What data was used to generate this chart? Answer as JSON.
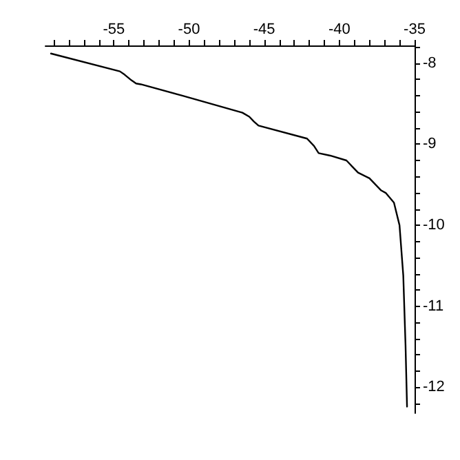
{
  "chart_data": {
    "type": "line",
    "x": [
      -59.18,
      -54.6,
      -54.29,
      -53.83,
      -53.52,
      -53.2,
      -50.45,
      -46.45,
      -45.99,
      -45.68,
      -45.38,
      -42.15,
      -41.69,
      -41.38,
      -40.61,
      -39.53,
      -38.76,
      -38.0,
      -37.22,
      -36.92,
      -36.37,
      -36.0,
      -35.75,
      -35.6,
      -35.5
    ],
    "series": [
      {
        "color": "#000000",
        "values": [
          -7.88,
          -8.1,
          -8.14,
          -8.21,
          -8.25,
          -8.26,
          -8.4,
          -8.61,
          -8.66,
          -8.72,
          -8.77,
          -8.93,
          -9.02,
          -9.11,
          -9.14,
          -9.2,
          -9.35,
          -9.42,
          -9.57,
          -9.6,
          -9.72,
          -10.0,
          -10.62,
          -11.48,
          -12.24
        ]
      }
    ],
    "xlim": [
      -59.55,
      -35
    ],
    "ylim": [
      -12.32,
      -7.78
    ],
    "xticks": [
      {
        "value": -59,
        "label": null
      },
      {
        "value": -58,
        "label": null
      },
      {
        "value": -57,
        "label": null
      },
      {
        "value": -56,
        "label": null
      },
      -55,
      {
        "value": -54,
        "label": null
      },
      {
        "value": -53,
        "label": null
      },
      {
        "value": -52,
        "label": null
      },
      {
        "value": -51,
        "label": null
      },
      -50,
      {
        "value": -49,
        "label": null
      },
      {
        "value": -48,
        "label": null
      },
      {
        "value": -47,
        "label": null
      },
      {
        "value": -46,
        "label": null
      },
      -45,
      {
        "value": -44,
        "label": null
      },
      {
        "value": -43,
        "label": null
      },
      {
        "value": -42,
        "label": null
      },
      {
        "value": -41,
        "label": null
      },
      -40,
      {
        "value": -39,
        "label": null
      },
      {
        "value": -38,
        "label": null
      },
      {
        "value": -37,
        "label": null
      },
      {
        "value": -36,
        "label": null
      },
      -35
    ],
    "yticks": [
      {
        "value": -7.8,
        "label": null
      },
      -8,
      {
        "value": -8.2,
        "label": null
      },
      {
        "value": -8.4,
        "label": null
      },
      {
        "value": -8.6,
        "label": null
      },
      {
        "value": -8.8,
        "label": null
      },
      -9,
      {
        "value": -9.2,
        "label": null
      },
      {
        "value": -9.4,
        "label": null
      },
      {
        "value": -9.6,
        "label": null
      },
      {
        "value": -9.8,
        "label": null
      },
      -10,
      {
        "value": -10.2,
        "label": null
      },
      {
        "value": -10.4,
        "label": null
      },
      {
        "value": -10.6,
        "label": null
      },
      {
        "value": -10.8,
        "label": null
      },
      -11,
      {
        "value": -11.2,
        "label": null
      },
      {
        "value": -11.4,
        "label": null
      },
      {
        "value": -11.6,
        "label": null
      },
      {
        "value": -11.8,
        "label": null
      },
      -12,
      {
        "value": -12.2,
        "label": null
      }
    ],
    "grid": false,
    "marker": "none",
    "line_style": "solid"
  }
}
